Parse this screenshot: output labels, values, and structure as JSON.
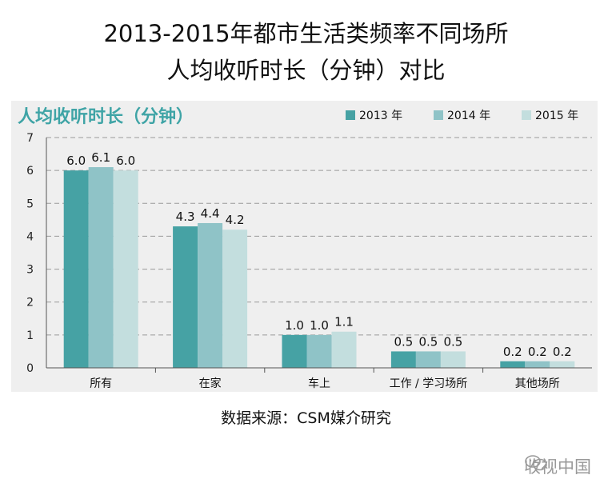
{
  "header": {
    "title_line1": "2013-2015年都市生活类频率不同场所",
    "title_line2": "人均收听时长（分钟）对比"
  },
  "footer": {
    "source": "数据来源：CSM媒介研究",
    "watermark": "收视中国",
    "watermark_icon": "wechat-icon"
  },
  "colors": {
    "series": [
      "#46a2a4",
      "#8fc3c7",
      "#c3dede"
    ],
    "subtitle": "#3fa4a6",
    "background": "#efefef"
  },
  "chart_data": {
    "type": "bar",
    "title": "人均收听时长（分钟）",
    "categories": [
      "所有",
      "在家",
      "车上",
      "工作 / 学习场所",
      "其他场所"
    ],
    "series": [
      {
        "name": "2013 年",
        "values": [
          6.0,
          4.3,
          1.0,
          0.5,
          0.2
        ],
        "labels": [
          "6.0",
          "4.3",
          "1.0",
          "0.5",
          "0.2"
        ]
      },
      {
        "name": "2014 年",
        "values": [
          6.1,
          4.4,
          1.0,
          0.5,
          0.2
        ],
        "labels": [
          "6.1",
          "4.4",
          "1.0",
          "0.5",
          "0.2"
        ]
      },
      {
        "name": "2015 年",
        "values": [
          6.0,
          4.2,
          1.1,
          0.5,
          0.2
        ],
        "labels": [
          "6.0",
          "4.2",
          "1.1",
          "0.5",
          "0.2"
        ]
      }
    ],
    "ylim": [
      0,
      7
    ],
    "yticks": [
      "0",
      "1",
      "2",
      "3",
      "4",
      "5",
      "6",
      "7"
    ],
    "grid": true,
    "legend_position": "top-right"
  }
}
